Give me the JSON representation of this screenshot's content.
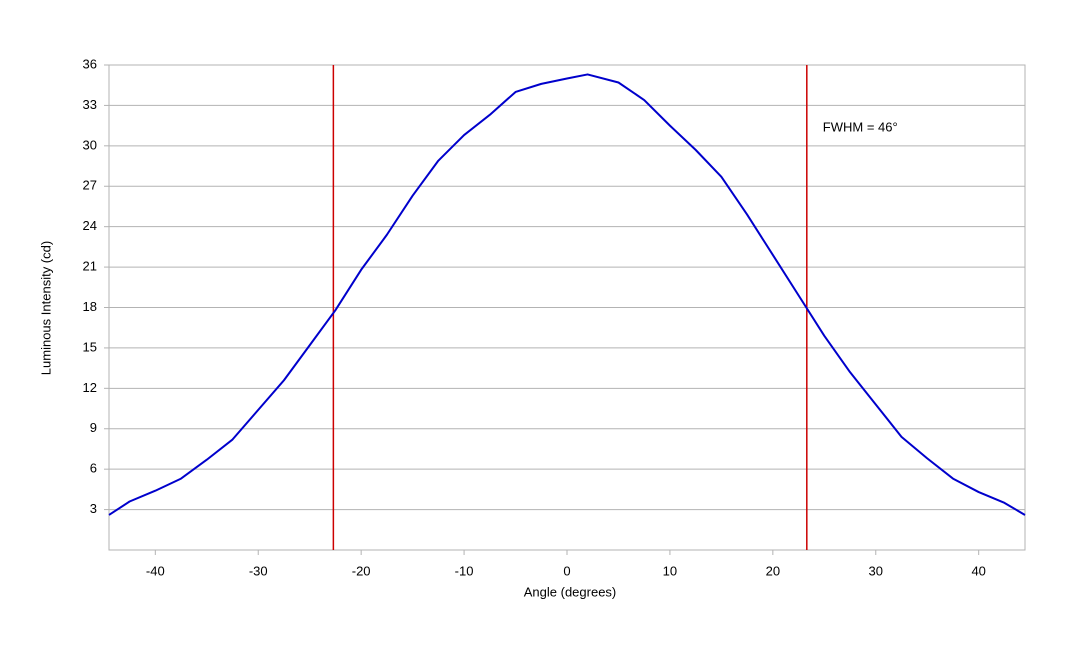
{
  "chart_data": {
    "type": "line",
    "x_label": "Angle (degrees)",
    "y_label": "Luminous Intensity (cd)",
    "annotation": "FWHM = 46°",
    "x": [
      -44.5,
      -42.5,
      -40,
      -37.5,
      -35,
      -32.5,
      -30,
      -27.5,
      -25,
      -22.5,
      -20,
      -17.5,
      -15,
      -12.5,
      -10,
      -7.5,
      -5,
      -2.5,
      0,
      2,
      5,
      7.5,
      10,
      12.5,
      15,
      17.5,
      20,
      22.5,
      25,
      27.5,
      30,
      32.5,
      35,
      37.5,
      40,
      42.5,
      44.5
    ],
    "values": [
      2.6,
      3.6,
      4.4,
      5.3,
      6.7,
      8.2,
      10.4,
      12.6,
      15.2,
      17.8,
      20.8,
      23.4,
      26.3,
      28.9,
      30.8,
      32.3,
      34,
      34.6,
      35,
      35.3,
      34.7,
      33.4,
      31.5,
      29.7,
      27.7,
      24.9,
      21.9,
      18.9,
      15.9,
      13.2,
      10.8,
      8.4,
      6.8,
      5.3,
      4.3,
      3.5,
      2.6
    ],
    "color": "#0000cc",
    "vlines": [
      -22.7,
      23.3
    ],
    "vline_color": "#cc0000",
    "xlim": [
      -44.5,
      44.5
    ],
    "xticks": [
      -40,
      -30,
      -20,
      -10,
      0,
      10,
      20,
      30,
      40
    ],
    "ylim": [
      0,
      36
    ],
    "yticks": [
      3,
      6,
      9,
      12,
      15,
      18,
      21,
      24,
      27,
      30,
      33,
      36
    ],
    "grid": true
  }
}
